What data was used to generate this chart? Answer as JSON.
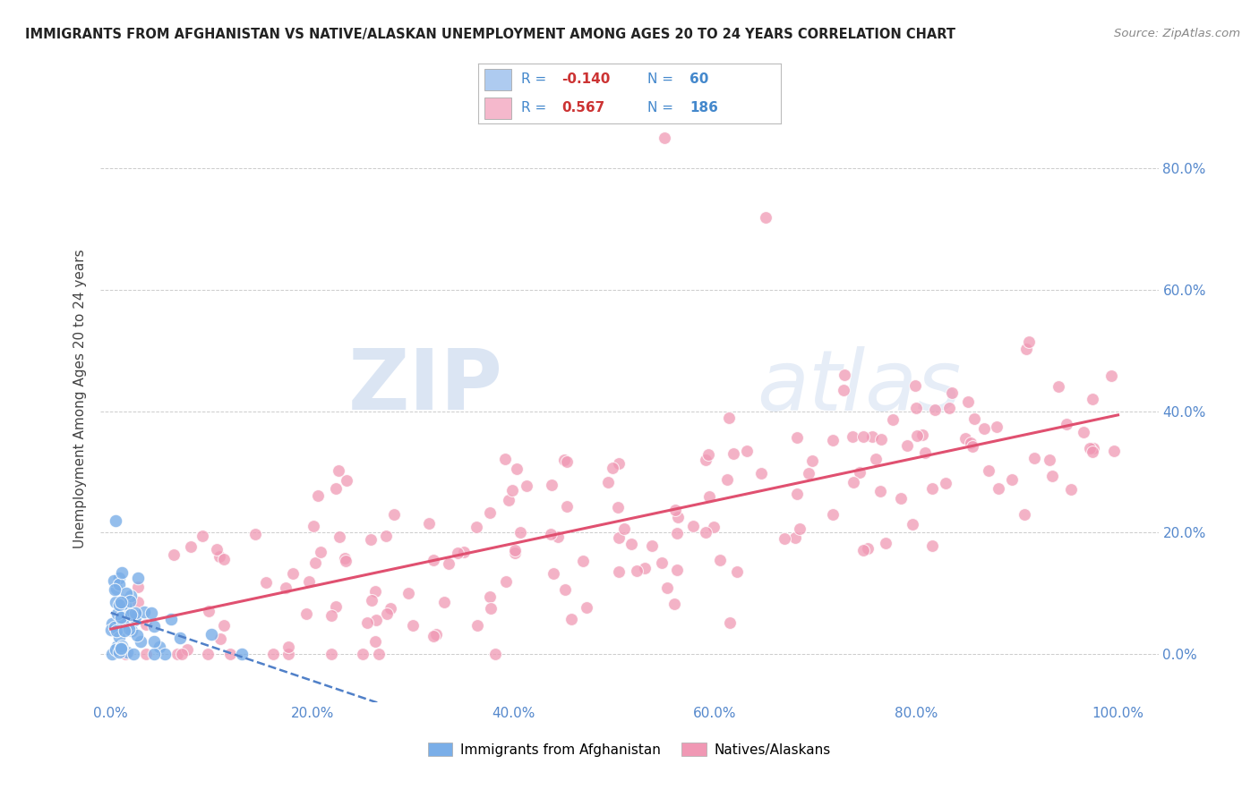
{
  "title": "IMMIGRANTS FROM AFGHANISTAN VS NATIVE/ALASKAN UNEMPLOYMENT AMONG AGES 20 TO 24 YEARS CORRELATION CHART",
  "source": "Source: ZipAtlas.com",
  "ylabel": "Unemployment Among Ages 20 to 24 years",
  "xlim": [
    -0.01,
    1.04
  ],
  "ylim": [
    -0.08,
    0.92
  ],
  "xticks": [
    0.0,
    0.2,
    0.4,
    0.6,
    0.8,
    1.0
  ],
  "xticklabels": [
    "0.0%",
    "20.0%",
    "40.0%",
    "60.0%",
    "80.0%",
    "100.0%"
  ],
  "ytick_positions": [
    0.0,
    0.2,
    0.4,
    0.6,
    0.8
  ],
  "yticklabels_right": [
    "0.0%",
    "20.0%",
    "40.0%",
    "60.0%",
    "80.0%"
  ],
  "watermark_zip": "ZIP",
  "watermark_atlas": "atlas",
  "r_afghanistan": -0.14,
  "n_afghanistan": 60,
  "r_natives": 0.567,
  "n_natives": 186,
  "scatter_afghanistan_color": "#7aaee8",
  "scatter_natives_color": "#f098b4",
  "line_afghanistan_color": "#5080c8",
  "line_natives_color": "#e05070",
  "legend_blue_box": "#aecbf0",
  "legend_pink_box": "#f5b8cc",
  "legend_text_dark": "#333333",
  "legend_text_blue": "#4488cc",
  "legend_text_red": "#cc3333",
  "axis_tick_color": "#5588cc",
  "grid_color": "#cccccc",
  "title_color": "#222222",
  "source_color": "#888888",
  "ylabel_color": "#444444"
}
